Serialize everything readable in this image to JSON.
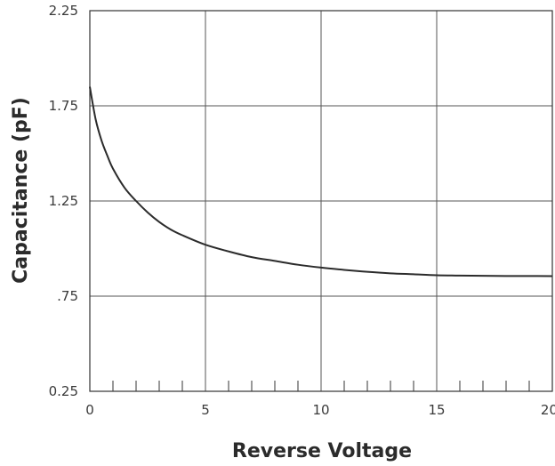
{
  "chart_data": {
    "type": "line",
    "title": "",
    "xlabel": "Reverse Voltage",
    "ylabel": "Capacitance (pF)",
    "xlim": [
      0,
      20
    ],
    "ylim": [
      0.25,
      2.25
    ],
    "x_tick_values": [
      0,
      5,
      10,
      15,
      20
    ],
    "x_tick_labels": [
      "0",
      "5",
      "10",
      "15",
      "20"
    ],
    "x_minor_step": 1,
    "y_tick_values": [
      0.25,
      0.75,
      1.25,
      1.75,
      2.25
    ],
    "y_tick_labels": [
      "0.25",
      ".75",
      "1.25",
      "1.75",
      "2.25"
    ],
    "grid": true,
    "legend": "none",
    "colors": {
      "line": "#2b2b2b",
      "grid": "#555555",
      "axis": "#333333"
    },
    "series": [
      {
        "x": [
          0,
          0.25,
          0.5,
          0.75,
          1,
          1.5,
          2,
          2.5,
          3,
          3.5,
          4,
          5,
          6,
          7,
          8,
          9,
          10,
          11,
          12,
          13,
          14,
          15,
          16,
          17,
          18,
          19,
          20
        ],
        "values": [
          1.85,
          1.68,
          1.57,
          1.49,
          1.42,
          1.32,
          1.25,
          1.19,
          1.14,
          1.1,
          1.07,
          1.02,
          0.985,
          0.955,
          0.935,
          0.915,
          0.9,
          0.888,
          0.878,
          0.87,
          0.865,
          0.86,
          0.858,
          0.857,
          0.856,
          0.856,
          0.855
        ]
      }
    ]
  }
}
